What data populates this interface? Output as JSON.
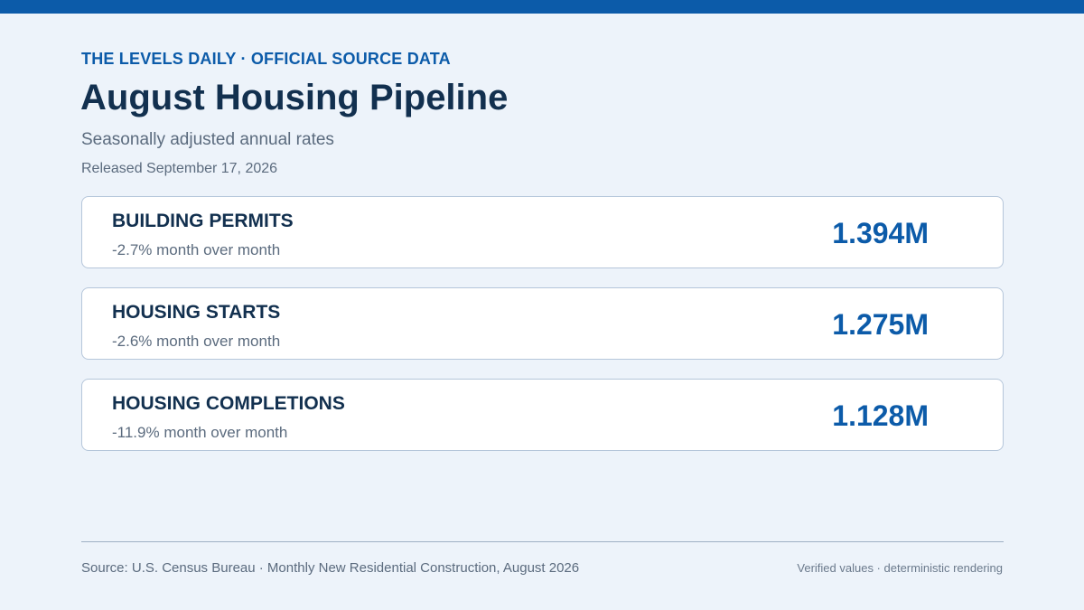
{
  "header": {
    "kicker": "THE LEVELS DAILY · OFFICIAL SOURCE DATA",
    "title": "August Housing Pipeline",
    "subtitle": "Seasonally adjusted annual rates",
    "released": "Released September 17, 2026"
  },
  "metrics": [
    {
      "label": "BUILDING PERMITS",
      "change": "-2.7% month over month",
      "value": "1.394M"
    },
    {
      "label": "HOUSING STARTS",
      "change": "-2.6% month over month",
      "value": "1.275M"
    },
    {
      "label": "HOUSING COMPLETIONS",
      "change": "-11.9% month over month",
      "value": "1.128M"
    }
  ],
  "footer": {
    "source": "Source: U.S. Census Bureau · Monthly New Residential Construction, August 2026",
    "note": "Verified values · deterministic rendering"
  },
  "colors": {
    "accent": "#0c5ba9",
    "title": "#12304f",
    "muted": "#5b6b7e",
    "background": "#edf3fa",
    "card_border": "#b5c6da"
  }
}
